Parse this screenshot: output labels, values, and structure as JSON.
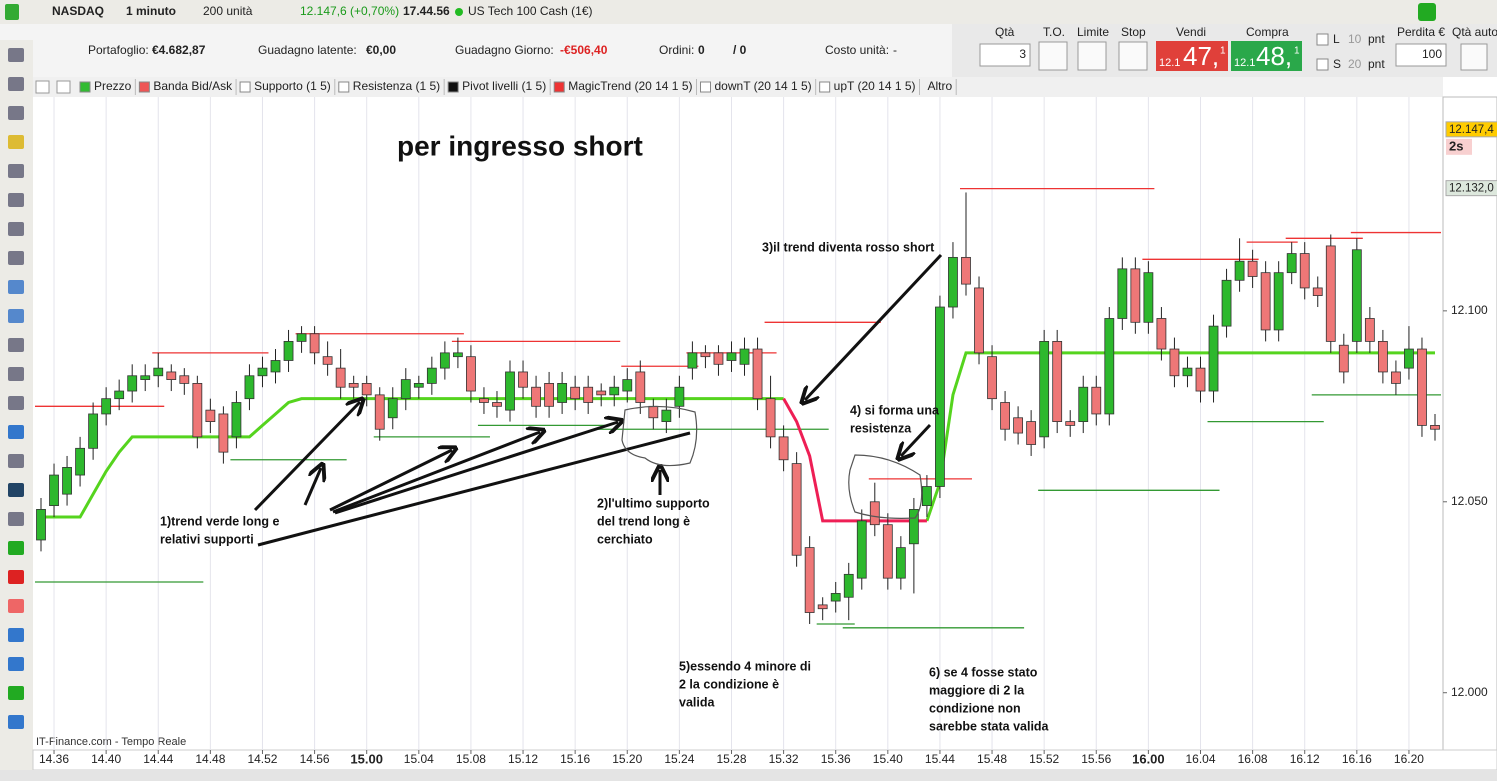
{
  "header": {
    "symbol": "NASDAQ",
    "timeframe": "1 minuto",
    "units": "200 unità",
    "quote": "12.147,6 (+0,70%)",
    "clock": "17.44.56",
    "instrument": "US Tech 100 Cash (1€)"
  },
  "account": {
    "portfolio_label": "Portafoglio:",
    "portfolio": "€4.682,87",
    "latent_label": "Guadagno latente:",
    "latent": "€0,00",
    "day_label": "Guadagno Giorno:",
    "day": "-€506,40",
    "orders_label": "Ordini:",
    "orders": "0",
    "orders_total": "/ 0",
    "cost_label": "Costo unità:",
    "cost": "-"
  },
  "order_panel": {
    "qty_label": "Qtà",
    "qty": "3",
    "to_label": "T.O.",
    "limit_label": "Limite",
    "stop_label": "Stop",
    "sell_label": "Vendi",
    "buy_label": "Compra",
    "sell_prefix": "12.1",
    "sell_main": "47,",
    "sell_suffix": "1",
    "buy_prefix": "12.1",
    "buy_main": "48,",
    "buy_suffix": "1",
    "l_label": "L",
    "l_value": "10",
    "l_unit": "pnt",
    "s_label": "S",
    "s_value": "20",
    "s_unit": "pnt",
    "loss_label": "Perdita €",
    "loss": "100",
    "auto_label": "Qtà auto"
  },
  "indicators": [
    "Prezzo",
    "Banda Bid/Ask",
    "Supporto (1 5)",
    "Resistenza (1 5)",
    "Pivot livelli (1 5)",
    "MagicTrend (20 14 1 5)",
    "downT (20 14 1 5)",
    "upT (20 14 1 5)",
    "Altro"
  ],
  "watermark": "IT-Finance.com - Tempo Reale",
  "chart_data": {
    "type": "candlestick",
    "title": "per ingresso short",
    "x": [
      "14.35",
      "14.36",
      "14.37",
      "14.38",
      "14.39",
      "14.40",
      "14.41",
      "14.42",
      "14.43",
      "14.44",
      "14.45",
      "14.46",
      "14.47",
      "14.48",
      "14.49",
      "14.50",
      "14.51",
      "14.52",
      "14.53",
      "14.54",
      "14.55",
      "14.56",
      "14.57",
      "14.58",
      "14.59",
      "15.00",
      "15.01",
      "15.02",
      "15.03",
      "15.04",
      "15.05",
      "15.06",
      "15.07",
      "15.08",
      "15.09",
      "15.10",
      "15.11",
      "15.12",
      "15.13",
      "15.14",
      "15.15",
      "15.16",
      "15.17",
      "15.18",
      "15.19",
      "15.20",
      "15.21",
      "15.22",
      "15.23",
      "15.24",
      "15.25",
      "15.26",
      "15.27",
      "15.28",
      "15.29",
      "15.30",
      "15.31",
      "15.32",
      "15.33",
      "15.34",
      "15.35",
      "15.36",
      "15.37",
      "15.38",
      "15.39",
      "15.40",
      "15.41",
      "15.42",
      "15.43",
      "15.44",
      "15.45",
      "15.46",
      "15.47",
      "15.48",
      "15.49",
      "15.50",
      "15.51",
      "15.52",
      "15.53",
      "15.54",
      "15.55",
      "15.56",
      "15.57",
      "15.58",
      "15.59",
      "16.00",
      "16.01",
      "16.02",
      "16.03",
      "16.04",
      "16.05",
      "16.06",
      "16.07",
      "16.08",
      "16.09",
      "16.10",
      "16.11",
      "16.12",
      "16.13",
      "16.14",
      "16.15",
      "16.16",
      "16.17",
      "16.18",
      "16.19",
      "16.20",
      "16.21",
      "16.22"
    ],
    "open": [
      12.04,
      12.049,
      12.052,
      12.057,
      12.064,
      12.073,
      12.077,
      12.079,
      12.082,
      12.083,
      12.084,
      12.083,
      12.081,
      12.074,
      12.073,
      12.067,
      12.077,
      12.083,
      12.084,
      12.087,
      12.092,
      12.094,
      12.088,
      12.085,
      12.081,
      12.081,
      12.078,
      12.072,
      12.077,
      12.08,
      12.081,
      12.085,
      12.088,
      12.088,
      12.077,
      12.076,
      12.074,
      12.084,
      12.08,
      12.081,
      12.076,
      12.08,
      12.08,
      12.079,
      12.078,
      12.079,
      12.084,
      12.075,
      12.071,
      12.075,
      12.085,
      12.089,
      12.089,
      12.087,
      12.086,
      12.09,
      12.077,
      12.067,
      12.06,
      12.038,
      12.023,
      12.024,
      12.025,
      12.03,
      12.05,
      12.044,
      12.03,
      12.039,
      12.049,
      12.054,
      12.101,
      12.114,
      12.106,
      12.088,
      12.076,
      12.072,
      12.071,
      12.067,
      12.092,
      12.071,
      12.071,
      12.08,
      12.073,
      12.098,
      12.111,
      12.097,
      12.098,
      12.09,
      12.083,
      12.085,
      12.079,
      12.096,
      12.108,
      12.113,
      12.11,
      12.095,
      12.11,
      12.115,
      12.106,
      12.117,
      12.091,
      12.092,
      12.098,
      12.092,
      12.084,
      12.085,
      12.09,
      12.07
    ],
    "high": [
      12.051,
      12.06,
      12.062,
      12.067,
      12.076,
      12.08,
      12.082,
      12.086,
      12.086,
      12.089,
      12.086,
      12.085,
      12.083,
      12.077,
      12.075,
      12.079,
      12.086,
      12.088,
      12.09,
      12.095,
      12.096,
      12.096,
      12.092,
      12.09,
      12.083,
      12.083,
      12.08,
      12.08,
      12.085,
      12.083,
      12.088,
      12.092,
      12.093,
      12.091,
      12.08,
      12.079,
      12.087,
      12.087,
      12.083,
      12.084,
      12.084,
      12.083,
      12.083,
      12.081,
      12.083,
      12.085,
      12.087,
      12.077,
      12.077,
      12.083,
      12.092,
      12.091,
      12.091,
      12.092,
      12.093,
      12.093,
      12.083,
      12.07,
      12.063,
      12.041,
      12.025,
      12.029,
      12.034,
      12.048,
      12.055,
      12.047,
      12.041,
      12.051,
      12.057,
      12.104,
      12.118,
      12.131,
      12.109,
      12.091,
      12.079,
      12.075,
      12.074,
      12.095,
      12.095,
      12.074,
      12.083,
      12.083,
      12.101,
      12.114,
      12.114,
      12.113,
      12.101,
      12.093,
      12.088,
      12.088,
      12.099,
      12.111,
      12.119,
      12.116,
      12.113,
      12.113,
      12.118,
      12.118,
      12.109,
      12.12,
      12.094,
      12.119,
      12.101,
      12.095,
      12.087,
      12.096,
      12.093,
      12.073
    ],
    "low": [
      12.037,
      12.046,
      12.049,
      12.054,
      12.061,
      12.07,
      12.074,
      12.076,
      12.079,
      12.08,
      12.079,
      12.078,
      12.064,
      12.068,
      12.06,
      12.064,
      12.074,
      12.08,
      12.081,
      12.084,
      12.089,
      12.086,
      12.083,
      12.077,
      12.077,
      12.075,
      12.066,
      12.069,
      12.074,
      12.077,
      12.078,
      12.082,
      12.085,
      12.076,
      12.073,
      12.072,
      12.071,
      12.077,
      12.072,
      12.072,
      12.073,
      12.074,
      12.073,
      12.075,
      12.075,
      12.076,
      12.073,
      12.069,
      12.068,
      12.072,
      12.082,
      12.085,
      12.083,
      12.084,
      12.083,
      12.074,
      12.064,
      12.058,
      12.033,
      12.018,
      12.019,
      12.021,
      12.019,
      12.027,
      12.041,
      12.027,
      12.027,
      12.026,
      12.046,
      12.051,
      12.098,
      12.104,
      12.086,
      12.074,
      12.066,
      12.065,
      12.062,
      12.064,
      12.068,
      12.067,
      12.068,
      12.07,
      12.07,
      12.095,
      12.094,
      12.094,
      12.087,
      12.08,
      12.08,
      12.076,
      12.076,
      12.093,
      12.105,
      12.106,
      12.092,
      12.092,
      12.107,
      12.103,
      12.101,
      12.089,
      12.081,
      12.089,
      12.089,
      12.081,
      12.078,
      12.082,
      12.067,
      12.066
    ],
    "close": [
      12.048,
      12.057,
      12.059,
      12.064,
      12.073,
      12.077,
      12.079,
      12.083,
      12.083,
      12.085,
      12.082,
      12.081,
      12.067,
      12.071,
      12.063,
      12.076,
      12.083,
      12.085,
      12.087,
      12.092,
      12.094,
      12.089,
      12.086,
      12.08,
      12.08,
      12.078,
      12.069,
      12.077,
      12.082,
      12.081,
      12.085,
      12.089,
      12.089,
      12.079,
      12.076,
      12.075,
      12.084,
      12.08,
      12.075,
      12.075,
      12.081,
      12.077,
      12.076,
      12.078,
      12.08,
      12.082,
      12.076,
      12.072,
      12.074,
      12.08,
      12.089,
      12.088,
      12.086,
      12.089,
      12.09,
      12.077,
      12.067,
      12.061,
      12.036,
      12.021,
      12.022,
      12.026,
      12.031,
      12.045,
      12.044,
      12.03,
      12.038,
      12.048,
      12.054,
      12.101,
      12.114,
      12.107,
      12.089,
      12.077,
      12.069,
      12.068,
      12.065,
      12.092,
      12.071,
      12.07,
      12.08,
      12.073,
      12.098,
      12.111,
      12.097,
      12.11,
      12.09,
      12.083,
      12.085,
      12.079,
      12.096,
      12.108,
      12.113,
      12.109,
      12.095,
      12.11,
      12.115,
      12.106,
      12.104,
      12.092,
      12.084,
      12.116,
      12.092,
      12.084,
      12.081,
      12.09,
      12.07,
      12.069
    ],
    "up_color": "#2db82d",
    "down_color": "#ee7777",
    "series": [
      {
        "color": "#55d41e",
        "values": [
          12.046,
          12.046,
          12.046,
          12.046,
          12.052,
          12.058,
          12.063,
          12.067,
          12.067,
          12.067,
          12.067,
          12.067,
          12.067,
          12.067,
          12.067,
          12.067,
          12.067,
          12.07,
          12.073,
          12.076,
          12.077,
          12.077,
          12.077,
          12.077,
          12.077,
          12.077,
          12.077,
          12.077,
          12.077,
          12.077,
          12.077,
          12.077,
          12.077,
          12.077,
          12.077,
          12.077,
          12.077,
          12.077,
          12.077,
          12.077,
          12.077,
          12.077,
          12.077,
          12.077,
          12.077,
          12.077,
          12.077,
          12.077,
          12.077,
          12.077,
          12.077,
          12.077,
          12.077,
          12.077,
          12.077,
          12.077,
          12.077,
          12.077,
          null,
          null,
          null,
          null,
          null,
          null,
          null,
          null,
          null,
          null,
          12.045,
          12.055,
          12.078,
          12.089,
          12.089,
          12.089,
          12.089,
          12.089,
          12.089,
          12.089,
          12.089,
          12.089,
          12.089,
          12.089,
          12.089,
          12.089,
          12.089,
          12.089,
          12.089,
          12.089,
          12.089,
          12.089,
          12.089,
          12.089,
          12.089,
          12.089,
          12.089,
          12.089,
          12.089,
          12.089,
          12.089,
          12.089,
          12.089,
          12.089,
          12.089,
          12.089,
          12.089,
          12.089,
          12.089,
          12.089
        ]
      },
      {
        "color": "#ee1f55",
        "values": [
          null,
          null,
          null,
          null,
          null,
          null,
          null,
          null,
          null,
          null,
          null,
          null,
          null,
          null,
          null,
          null,
          null,
          null,
          null,
          null,
          null,
          null,
          null,
          null,
          null,
          null,
          null,
          null,
          null,
          null,
          null,
          null,
          null,
          null,
          null,
          null,
          null,
          null,
          null,
          null,
          null,
          null,
          null,
          null,
          null,
          null,
          null,
          null,
          null,
          null,
          null,
          null,
          null,
          null,
          null,
          null,
          null,
          12.077,
          12.071,
          12.062,
          12.045,
          12.045,
          12.045,
          12.045,
          12.045,
          12.045,
          12.045,
          12.045,
          12.045,
          null,
          null,
          null,
          null,
          null,
          null,
          null,
          null,
          null,
          null,
          null,
          null,
          null,
          null,
          null,
          null,
          null,
          null,
          null,
          null,
          null,
          null,
          null,
          null,
          null,
          null,
          null,
          null,
          null,
          null,
          null,
          null,
          null,
          null,
          null,
          null,
          null,
          null,
          null
        ]
      }
    ],
    "resistance_color": "#ee3333",
    "support_color": "#339933",
    "resistance": [
      {
        "from": "14.35",
        "to": "14.44",
        "value": 12.075
      },
      {
        "from": "14.44",
        "to": "14.52",
        "value": 12.089
      },
      {
        "from": "14.55",
        "to": "15.07",
        "value": 12.094
      },
      {
        "from": "15.07",
        "to": "15.19",
        "value": 12.092
      },
      {
        "from": "15.20",
        "to": "15.25",
        "value": 12.0855
      },
      {
        "from": "15.25",
        "to": "15.31",
        "value": 12.089
      },
      {
        "from": "15.31",
        "to": "15.39",
        "value": 12.097
      },
      {
        "from": "15.39",
        "to": "15.46",
        "value": 12.056
      },
      {
        "from": "15.46",
        "to": "16.00",
        "value": 12.132
      },
      {
        "from": "16.00",
        "to": "16.08",
        "value": 12.1135
      },
      {
        "from": "16.08",
        "to": "16.11",
        "value": 12.118
      },
      {
        "from": "16.11",
        "to": "16.16",
        "value": 12.119
      },
      {
        "from": "16.16",
        "to": "16.22",
        "value": 12.1205
      }
    ],
    "support": [
      {
        "from": "14.35",
        "to": "14.47",
        "value": 12.029
      },
      {
        "from": "14.50",
        "to": "14.58",
        "value": 12.061
      },
      {
        "from": "15.01",
        "to": "15.09",
        "value": 12.067
      },
      {
        "from": "15.09",
        "to": "15.18",
        "value": 12.07
      },
      {
        "from": "15.18",
        "to": "15.35",
        "value": 12.069
      },
      {
        "from": "15.35",
        "to": "15.37",
        "value": 12.018
      },
      {
        "from": "15.37",
        "to": "15.50",
        "value": 12.017
      },
      {
        "from": "15.52",
        "to": "16.05",
        "value": 12.053
      },
      {
        "from": "16.05",
        "to": "16.13",
        "value": 12.071
      },
      {
        "from": "16.13",
        "to": "16.22",
        "value": 12.078
      }
    ],
    "xticks": [
      "14.36",
      "14.40",
      "14.44",
      "14.48",
      "14.52",
      "14.56",
      "15.00",
      "15.04",
      "15.08",
      "15.12",
      "15.16",
      "15.20",
      "15.24",
      "15.28",
      "15.32",
      "15.36",
      "15.40",
      "15.44",
      "15.48",
      "15.52",
      "15.56",
      "16.00",
      "16.04",
      "16.08",
      "16.12",
      "16.16",
      "16.20"
    ],
    "ylim": [
      11.985,
      12.156
    ],
    "yticks": [
      {
        "value": 12.0,
        "label": "12.000"
      },
      {
        "value": 12.05,
        "label": "12.050"
      },
      {
        "value": 12.1,
        "label": "12.100"
      }
    ],
    "grid": true,
    "price_markers": [
      {
        "value": 12.1474,
        "label": "12.147,4",
        "color": "#ffcc00"
      },
      {
        "value": 12.132,
        "label": "12.132,0",
        "color": "#dde8dd"
      }
    ],
    "timer": "2s",
    "annotations": [
      {
        "lines": [
          "1)trend verde long e",
          "relativi supporti"
        ]
      },
      {
        "lines": [
          "2)l'ultimo supporto",
          "del trend long è",
          "cerchiato"
        ]
      },
      {
        "lines": [
          "3)il trend diventa rosso short"
        ]
      },
      {
        "lines": [
          "4) si forma una",
          "resistenza"
        ]
      },
      {
        "lines": [
          "5)essendo 4 minore di",
          "2 la condizione è",
          "valida"
        ]
      },
      {
        "lines": [
          "6) se 4 fosse stato",
          "maggiore di 2 la",
          "condizione non",
          "sarebbe stata valida"
        ]
      }
    ]
  }
}
